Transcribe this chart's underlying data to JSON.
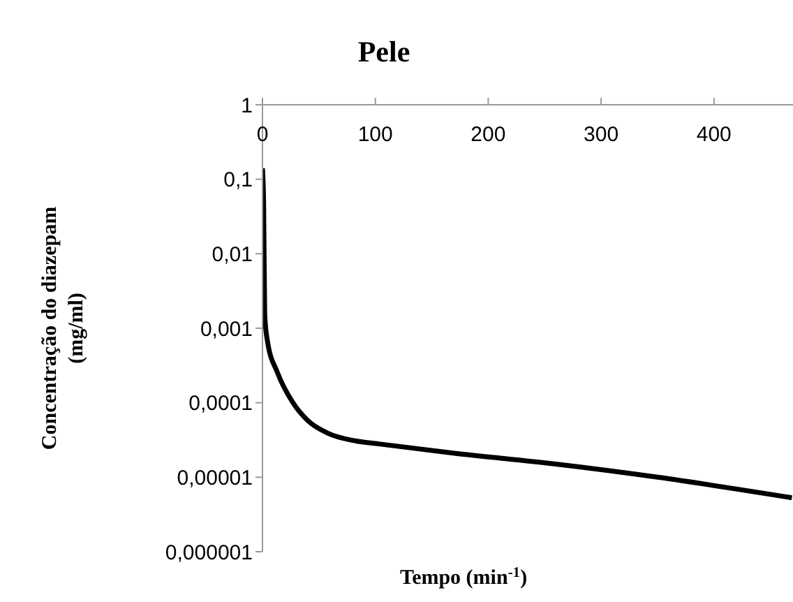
{
  "chart_data": {
    "type": "line",
    "title": "Pele",
    "xlabel": "Tempo (min$^{-1}$)",
    "ylabel": "Concentração do diazepam (mg/ml)",
    "x": [
      0,
      1,
      2,
      4.5,
      13,
      27,
      40,
      58,
      81,
      103,
      170,
      260,
      350,
      469
    ],
    "series": [
      {
        "color": "#000000",
        "values": [
          0.14,
          0.05,
          0.0015,
          0.00066,
          0.00026,
          0.0001,
          5.8e-05,
          3.9e-05,
          3.1e-05,
          2.8e-05,
          2.1e-05,
          1.5e-05,
          1e-05,
          5.3e-06
        ]
      }
    ],
    "log": "y",
    "marker": "none",
    "line_style": "solid",
    "xlim": [
      0,
      470
    ],
    "xticks": [
      0,
      100,
      200,
      300,
      400
    ],
    "ylim": [
      1e-06,
      1
    ],
    "yticks": [
      {
        "value": 1,
        "label": "1"
      },
      {
        "value": 0.1,
        "label": "0,1"
      },
      {
        "value": 0.01,
        "label": "0,01"
      },
      {
        "value": 0.001,
        "label": "0,001"
      },
      {
        "value": 0.0001,
        "label": "0,0001"
      },
      {
        "value": 1e-05,
        "label": "0,00001"
      },
      {
        "value": 1e-06,
        "label": "0,000001"
      }
    ]
  }
}
